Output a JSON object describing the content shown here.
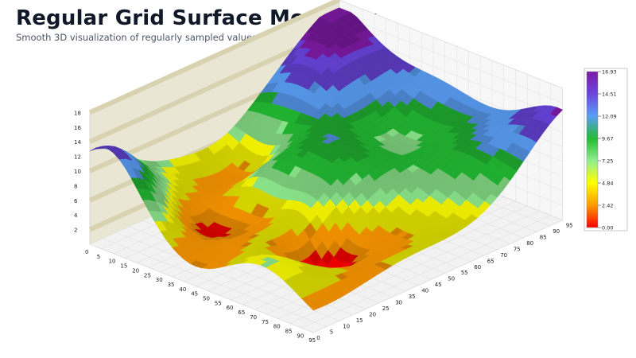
{
  "header": {
    "title": "Regular Grid Surface Modeling",
    "subtitle": "Smooth 3D visualization of regularly sampled values across a structured XYZ grid"
  },
  "chart_data": {
    "type": "surface3d",
    "x_ticks": [
      0,
      5,
      10,
      15,
      20,
      25,
      30,
      35,
      40,
      45,
      50,
      55,
      60,
      65,
      70,
      75,
      80,
      85,
      90,
      95
    ],
    "y_ticks": [
      0,
      5,
      10,
      15,
      20,
      25,
      30,
      35,
      40,
      45,
      50,
      55,
      60,
      65,
      70,
      75,
      80,
      85,
      90,
      95
    ],
    "z_ticks": [
      2,
      4,
      6,
      8,
      10,
      12,
      14,
      16,
      18
    ],
    "xlim": [
      0,
      95
    ],
    "ylim": [
      0,
      95
    ],
    "zlim": [
      0,
      18
    ],
    "grid": true,
    "colorbar": {
      "min": 0,
      "max": 16.93,
      "tick_labels": [
        "16.93",
        "14.51",
        "12.09",
        "9.67",
        "7.25",
        "4.84",
        "2.42",
        "0.00"
      ],
      "colors": [
        "#ff0000",
        "#ff9900",
        "#ffff00",
        "#90ee90",
        "#22bb33",
        "#5a9ef5",
        "#6a45e0",
        "#7e1aa6"
      ]
    },
    "surface_samples": {
      "description_x": [
        0,
        10,
        20,
        30,
        40,
        50,
        60,
        70,
        80,
        90,
        95
      ],
      "corner_values": {
        "x0_y0": 13.2,
        "x95_y0": 0.9,
        "x0_y95": 16.9,
        "x95_y95": 16.2
      },
      "peak_value": 16.93,
      "min_value": 0.0
    }
  }
}
